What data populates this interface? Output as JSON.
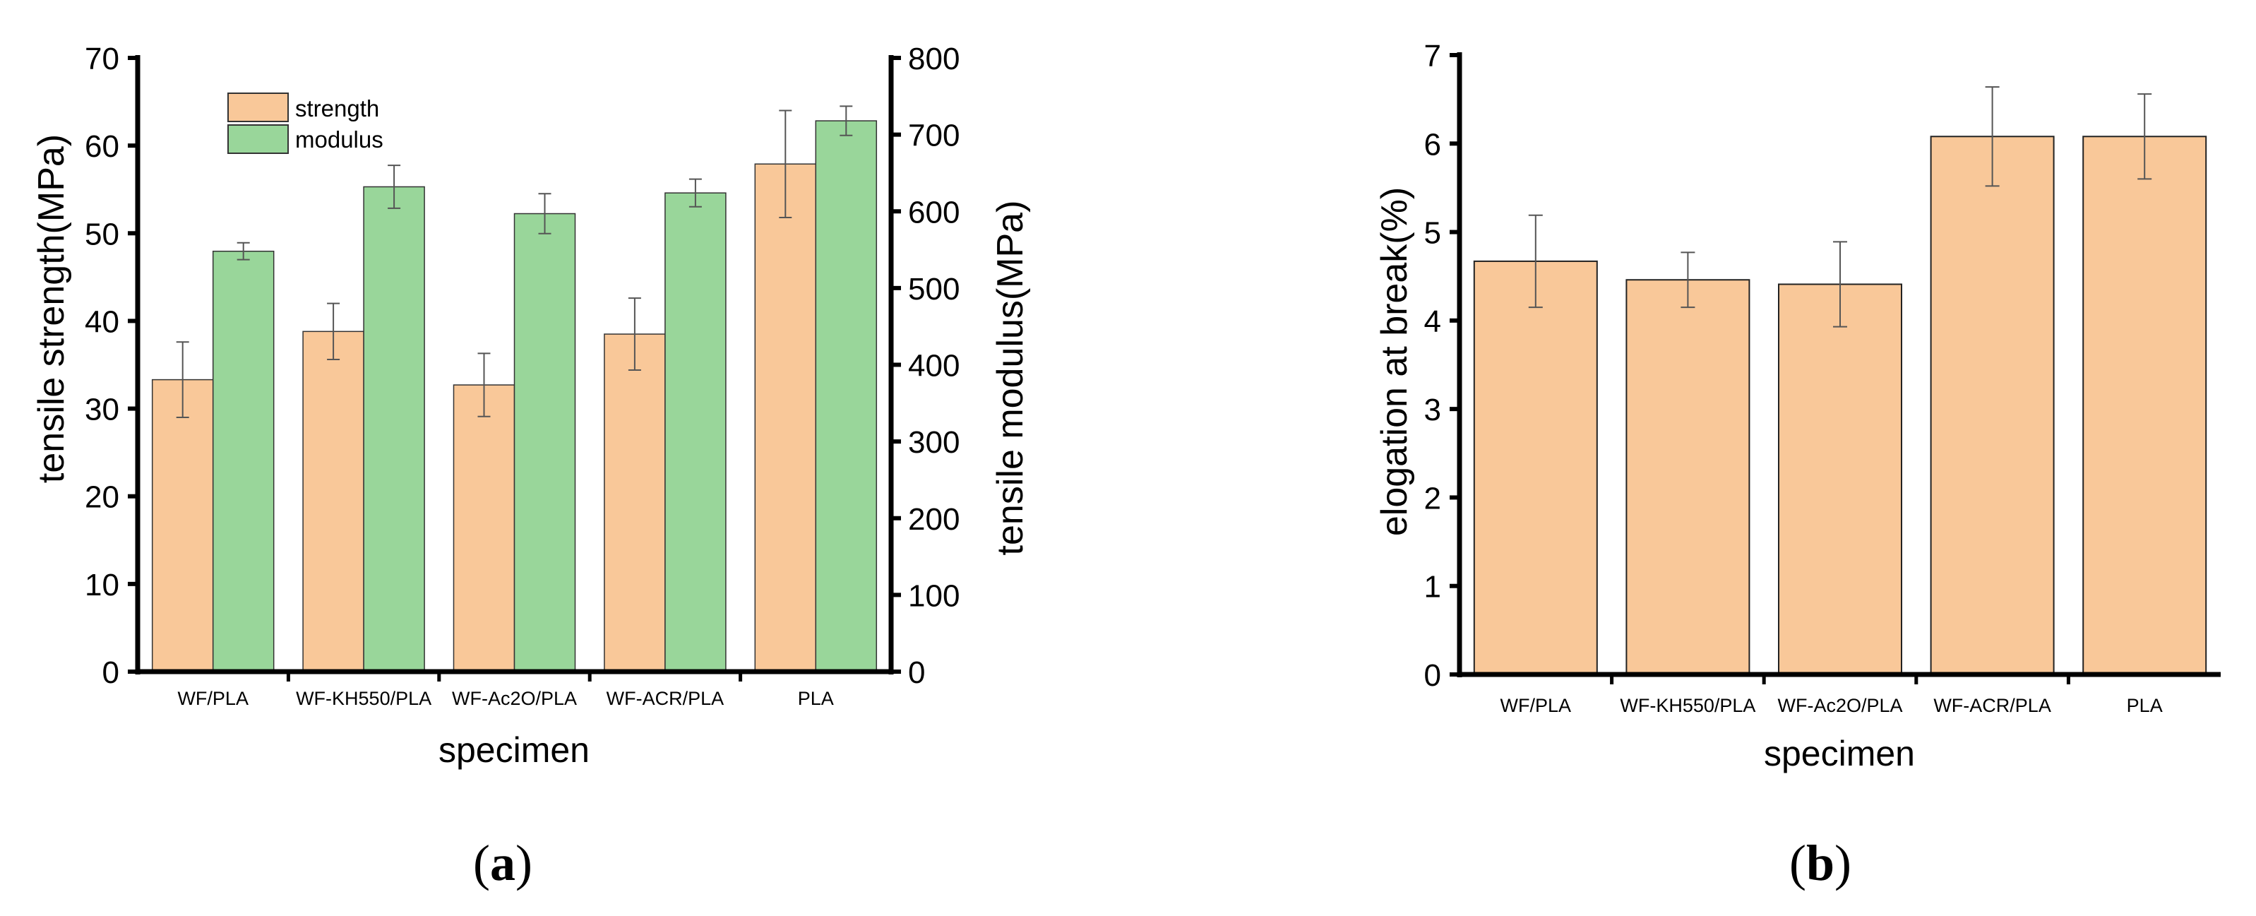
{
  "colors": {
    "strength": "#f9c899",
    "modulus": "#99d69a",
    "elongation": "#f9c899",
    "axis": "#000000",
    "errorbar": "#555555"
  },
  "chart_data": [
    {
      "type": "bar",
      "panel_label": "a",
      "categories": [
        "WF/PLA",
        "WF-KH550/PLA",
        "WF-Ac2O/PLA",
        "WF-ACR/PLA",
        "PLA"
      ],
      "xlabel": "specimen",
      "ylabel": "tensile strength(MPa)",
      "ylabel_right": "tensile modulus(MPa)",
      "ylim": [
        0,
        70
      ],
      "ylim_right": [
        0,
        800
      ],
      "yticks": [
        0,
        10,
        20,
        30,
        40,
        50,
        60,
        70
      ],
      "yticks_right": [
        0,
        100,
        200,
        300,
        400,
        500,
        600,
        700,
        800
      ],
      "legend": [
        "strength",
        "modulus"
      ],
      "legend_position": "top-left",
      "series": [
        {
          "name": "strength",
          "axis": "left",
          "values": [
            33.3,
            38.8,
            32.7,
            38.5,
            57.9
          ],
          "errors": [
            4.3,
            3.2,
            3.6,
            4.1,
            6.1
          ]
        },
        {
          "name": "modulus",
          "axis": "right",
          "values": [
            548,
            632,
            597,
            624,
            718
          ],
          "errors": [
            11,
            28,
            26,
            18,
            19
          ]
        }
      ]
    },
    {
      "type": "bar",
      "panel_label": "b",
      "categories": [
        "WF/PLA",
        "WF-KH550/PLA",
        "WF-Ac2O/PLA",
        "WF-ACR/PLA",
        "PLA"
      ],
      "xlabel": "specimen",
      "ylabel": "elogation at break(%)",
      "ylim": [
        0,
        7
      ],
      "yticks": [
        0,
        1,
        2,
        3,
        4,
        5,
        6,
        7
      ],
      "series": [
        {
          "name": "elongation",
          "values": [
            4.67,
            4.46,
            4.41,
            6.08,
            6.08
          ],
          "errors": [
            0.52,
            0.31,
            0.48,
            0.56,
            0.48
          ]
        }
      ]
    }
  ]
}
